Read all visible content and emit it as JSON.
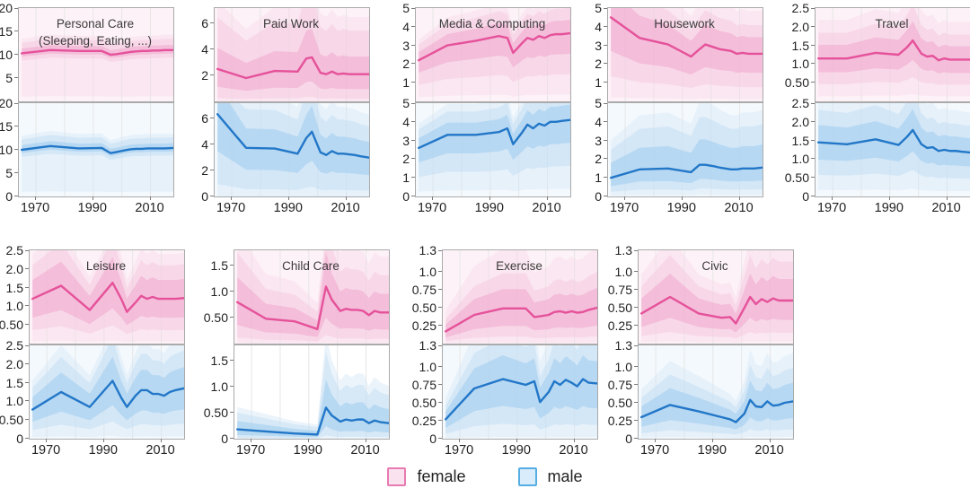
{
  "legend": {
    "items": [
      {
        "label": "female",
        "line_color": "#e5529a",
        "swatch_fill": "#fbe2ef",
        "swatch_border": "#e87ab2"
      },
      {
        "label": "male",
        "line_color": "#2277c8",
        "swatch_fill": "#d8ecfb",
        "swatch_border": "#56aee3"
      }
    ]
  },
  "colors": {
    "female_line": "#e5529a",
    "female_band1": "#f0a8cd",
    "female_band2": "#f5c6de",
    "female_band3": "#f8d7e8",
    "female_bg": "#fdf2f7",
    "male_line": "#2277c8",
    "male_band1": "#9fccee",
    "male_band2": "#c2ddf4",
    "male_band3": "#d4e7f7",
    "male_bg": "#f4f9fd",
    "grid": "#e6e6e6",
    "panel_border": "#aaaaaa"
  },
  "chart_data": {
    "type": "line",
    "x_label_ticks": [
      "1970",
      "1990",
      "2010"
    ],
    "x_tick_values": [
      1970,
      1990,
      2010
    ],
    "x_grid_values": [
      1970,
      1980,
      1990,
      2000,
      2010
    ],
    "x_range": [
      1964,
      2018
    ],
    "x": [
      1965,
      1975,
      1985,
      1993,
      1996,
      1998,
      2001,
      2003,
      2005,
      2007,
      2009,
      2011,
      2013,
      2015,
      2018
    ],
    "charts": [
      {
        "title": "Personal Care",
        "subtitle": "(Sleeping, Eating, ...)",
        "ymax": 20,
        "yticks": [
          {
            "v": 20,
            "t": "20"
          },
          {
            "v": 15,
            "t": "15"
          },
          {
            "v": 10,
            "t": "10"
          },
          {
            "v": 5,
            "t": "5"
          },
          {
            "v": 0,
            "t": "0"
          }
        ],
        "female": {
          "median": [
            10.3,
            11.0,
            10.8,
            10.8,
            10.0,
            10.1,
            10.4,
            10.6,
            10.7,
            10.8,
            10.8,
            10.9,
            10.9,
            11.0,
            11.0
          ],
          "b1": [
            0.93,
            1.1
          ],
          "b2": [
            0.85,
            1.22
          ],
          "b3": [
            0.1,
            1.3
          ]
        },
        "male": {
          "median": [
            10.0,
            10.8,
            10.3,
            10.4,
            9.3,
            9.5,
            9.9,
            10.1,
            10.2,
            10.2,
            10.3,
            10.3,
            10.3,
            10.3,
            10.4
          ],
          "b1": [
            0.93,
            1.1
          ],
          "b2": [
            0.85,
            1.22
          ],
          "b3": [
            0.1,
            1.3
          ]
        }
      },
      {
        "title": "Paid Work",
        "ymax": 7.2,
        "yticks": [
          {
            "v": 6,
            "t": "6"
          },
          {
            "v": 4,
            "t": "4"
          },
          {
            "v": 2,
            "t": "2"
          },
          {
            "v": 0,
            "t": "0"
          }
        ],
        "female": {
          "median": [
            2.5,
            1.8,
            2.35,
            2.3,
            3.3,
            3.4,
            2.2,
            2.1,
            2.3,
            2.1,
            2.15,
            2.1,
            2.1,
            2.1,
            2.1
          ],
          "b1": [
            0.45,
            1.65
          ],
          "b2": [
            0.1,
            2.6
          ],
          "b3": [
            0.0,
            3.1
          ]
        },
        "male": {
          "median": [
            6.35,
            3.75,
            3.7,
            3.3,
            4.5,
            5.0,
            3.4,
            3.2,
            3.5,
            3.3,
            3.3,
            3.25,
            3.2,
            3.1,
            3.0
          ],
          "b1": [
            0.55,
            1.4
          ],
          "b2": [
            0.15,
            1.8
          ],
          "b3": [
            0.0,
            2.1
          ]
        }
      },
      {
        "title": "Media & Computing",
        "ymax": 5,
        "yticks": [
          {
            "v": 5,
            "t": "5"
          },
          {
            "v": 4,
            "t": "4"
          },
          {
            "v": 3,
            "t": "3"
          },
          {
            "v": 2,
            "t": "2"
          },
          {
            "v": 1,
            "t": "1"
          },
          {
            "v": 0,
            "t": "0"
          }
        ],
        "female": {
          "median": [
            2.2,
            3.0,
            3.25,
            3.5,
            3.4,
            2.6,
            3.1,
            3.4,
            3.3,
            3.5,
            3.4,
            3.55,
            3.6,
            3.6,
            3.65
          ],
          "b1": [
            0.7,
            1.2
          ],
          "b2": [
            0.4,
            1.38
          ],
          "b3": [
            0.1,
            1.5
          ]
        },
        "male": {
          "median": [
            2.6,
            3.3,
            3.3,
            3.45,
            3.65,
            2.8,
            3.4,
            3.85,
            3.65,
            3.9,
            3.8,
            4.0,
            4.0,
            4.05,
            4.1
          ],
          "b1": [
            0.7,
            1.2
          ],
          "b2": [
            0.4,
            1.38
          ],
          "b3": [
            0.1,
            1.5
          ]
        }
      },
      {
        "title": "Housework",
        "ymax": 5,
        "yticks": [
          {
            "v": 5,
            "t": "5"
          },
          {
            "v": 4,
            "t": "4"
          },
          {
            "v": 3,
            "t": "3"
          },
          {
            "v": 2,
            "t": "2"
          },
          {
            "v": 1,
            "t": "1"
          },
          {
            "v": 0,
            "t": "0"
          }
        ],
        "female": {
          "median": [
            4.5,
            3.4,
            3.05,
            2.4,
            2.8,
            3.05,
            2.9,
            2.8,
            2.75,
            2.7,
            2.55,
            2.6,
            2.55,
            2.55,
            2.55
          ],
          "b1": [
            0.6,
            1.35
          ],
          "b2": [
            0.3,
            1.6
          ],
          "b3": [
            0.05,
            1.9
          ]
        },
        "male": {
          "median": [
            1.0,
            1.45,
            1.5,
            1.3,
            1.7,
            1.7,
            1.62,
            1.55,
            1.5,
            1.45,
            1.45,
            1.5,
            1.5,
            1.5,
            1.55
          ],
          "b1": [
            0.55,
            1.8
          ],
          "b2": [
            0.25,
            2.5
          ],
          "b3": [
            0.05,
            3.0
          ]
        }
      },
      {
        "title": "Travel",
        "ymax": 2.5,
        "yticks": [
          {
            "v": 2.5,
            "t": "2.5"
          },
          {
            "v": 2,
            "t": "2.0"
          },
          {
            "v": 1.5,
            "t": "1.5"
          },
          {
            "v": 1,
            "t": "1.0"
          },
          {
            "v": 0.5,
            "t": "0.50"
          },
          {
            "v": 0,
            "t": "0"
          }
        ],
        "female": {
          "median": [
            1.15,
            1.15,
            1.3,
            1.25,
            1.45,
            1.63,
            1.28,
            1.2,
            1.22,
            1.1,
            1.15,
            1.12,
            1.12,
            1.12,
            1.12
          ],
          "b1": [
            0.68,
            1.32
          ],
          "b2": [
            0.4,
            1.6
          ],
          "b3": [
            0.12,
            1.9
          ]
        },
        "male": {
          "median": [
            1.45,
            1.4,
            1.53,
            1.38,
            1.6,
            1.78,
            1.4,
            1.3,
            1.32,
            1.22,
            1.25,
            1.22,
            1.22,
            1.2,
            1.18
          ],
          "b1": [
            0.68,
            1.32
          ],
          "b2": [
            0.4,
            1.6
          ],
          "b3": [
            0.12,
            1.9
          ]
        }
      },
      {
        "title": "Leisure",
        "ymax": 2.5,
        "yticks": [
          {
            "v": 2.5,
            "t": "2.5"
          },
          {
            "v": 2,
            "t": "2.0"
          },
          {
            "v": 1.5,
            "t": "1.5"
          },
          {
            "v": 1,
            "t": "1.0"
          },
          {
            "v": 0.5,
            "t": "0.50"
          },
          {
            "v": 0,
            "t": "0"
          }
        ],
        "female": {
          "median": [
            1.2,
            1.55,
            0.9,
            1.63,
            1.2,
            0.85,
            1.1,
            1.28,
            1.2,
            1.25,
            1.2,
            1.2,
            1.2,
            1.2,
            1.22
          ],
          "b1": [
            0.58,
            1.42
          ],
          "b2": [
            0.3,
            1.75
          ],
          "b3": [
            0.05,
            2.0
          ]
        },
        "male": {
          "median": [
            0.78,
            1.25,
            0.85,
            1.55,
            1.1,
            0.85,
            1.15,
            1.3,
            1.3,
            1.2,
            1.2,
            1.15,
            1.25,
            1.3,
            1.35
          ],
          "b1": [
            0.58,
            1.42
          ],
          "b2": [
            0.3,
            1.75
          ],
          "b3": [
            0.05,
            2.0
          ]
        }
      },
      {
        "title": "Child Care",
        "ymax": 1.8,
        "yticks": [
          {
            "v": 1.5,
            "t": "1.5"
          },
          {
            "v": 1,
            "t": "1.0"
          },
          {
            "v": 0.5,
            "t": "0.50"
          },
          {
            "v": 0,
            "t": "0"
          }
        ],
        "female": {
          "median": [
            0.8,
            0.48,
            0.43,
            0.28,
            1.1,
            0.85,
            0.63,
            0.67,
            0.65,
            0.65,
            0.63,
            0.55,
            0.63,
            0.6,
            0.6
          ],
          "b1": [
            0.45,
            1.6
          ],
          "b2": [
            0.15,
            2.2
          ],
          "b3": [
            0.02,
            2.8
          ]
        },
        "male": {
          "median": [
            0.18,
            0.14,
            0.1,
            0.08,
            0.6,
            0.45,
            0.33,
            0.37,
            0.35,
            0.37,
            0.37,
            0.3,
            0.35,
            0.32,
            0.3
          ],
          "b1": [
            0.4,
            1.9
          ],
          "b2": [
            0.1,
            2.8
          ],
          "b3": [
            0.0,
            3.4
          ],
          "bg": "#ffffff"
        }
      },
      {
        "title": "Exercise",
        "ymax": 1.3,
        "yticks": [
          {
            "v": 1.3,
            "t": "1.3"
          },
          {
            "v": 1,
            "t": "1.0"
          },
          {
            "v": 0.75,
            "t": "0.75"
          },
          {
            "v": 0.5,
            "t": "0.50"
          },
          {
            "v": 0.25,
            "t": "0.25"
          },
          {
            "v": 0,
            "t": "0"
          }
        ],
        "female": {
          "median": [
            0.17,
            0.4,
            0.49,
            0.49,
            0.37,
            0.38,
            0.4,
            0.44,
            0.45,
            0.43,
            0.45,
            0.43,
            0.44,
            0.47,
            0.5
          ],
          "b1": [
            0.5,
            1.55
          ],
          "b2": [
            0.2,
            2.0
          ],
          "b3": [
            0.03,
            2.7
          ]
        },
        "male": {
          "median": [
            0.27,
            0.7,
            0.83,
            0.75,
            0.8,
            0.51,
            0.65,
            0.8,
            0.75,
            0.82,
            0.78,
            0.73,
            0.83,
            0.78,
            0.77
          ],
          "b1": [
            0.55,
            1.4
          ],
          "b2": [
            0.25,
            1.7
          ],
          "b3": [
            0.03,
            2.1
          ]
        }
      },
      {
        "title": "Civic",
        "ymax": 1.3,
        "yticks": [
          {
            "v": 1.3,
            "t": "1.3"
          },
          {
            "v": 1,
            "t": "1.0"
          },
          {
            "v": 0.75,
            "t": "0.75"
          },
          {
            "v": 0.5,
            "t": "0.50"
          },
          {
            "v": 0.25,
            "t": "0.25"
          },
          {
            "v": 0,
            "t": "0"
          }
        ],
        "female": {
          "median": [
            0.42,
            0.65,
            0.42,
            0.36,
            0.37,
            0.28,
            0.5,
            0.65,
            0.55,
            0.62,
            0.58,
            0.63,
            0.6,
            0.6,
            0.6
          ],
          "b1": [
            0.55,
            1.5
          ],
          "b2": [
            0.25,
            1.9
          ],
          "b3": [
            0.05,
            2.3
          ]
        },
        "male": {
          "median": [
            0.3,
            0.47,
            0.38,
            0.3,
            0.27,
            0.23,
            0.35,
            0.54,
            0.45,
            0.44,
            0.52,
            0.46,
            0.47,
            0.5,
            0.52
          ],
          "b1": [
            0.55,
            1.5
          ],
          "b2": [
            0.25,
            1.9
          ],
          "b3": [
            0.05,
            2.3
          ]
        }
      }
    ]
  }
}
